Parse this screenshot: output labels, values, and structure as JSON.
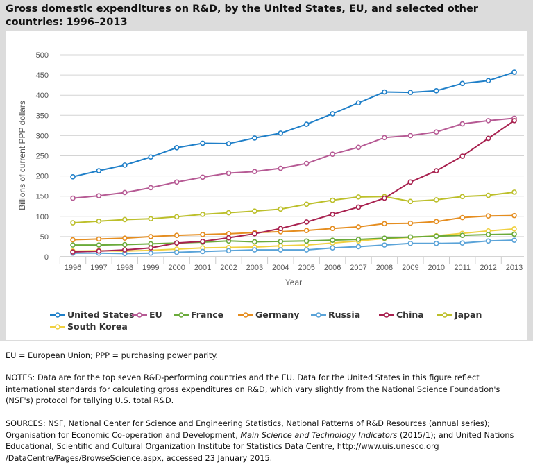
{
  "title": "Gross domestic expenditures on R&D, by the United States, EU, and selected other countries: 1996–2013",
  "chart_data": {
    "type": "line",
    "xlabel": "Year",
    "ylabel": "Billions of current PPP dollars",
    "ylim": [
      0,
      500
    ],
    "yticks": [
      0,
      50,
      100,
      150,
      200,
      250,
      300,
      350,
      400,
      450,
      500
    ],
    "grid": true,
    "legend": "bottom",
    "x": [
      1996,
      1997,
      1998,
      1999,
      2000,
      2001,
      2002,
      2003,
      2004,
      2005,
      2006,
      2007,
      2008,
      2009,
      2010,
      2011,
      2012,
      2013
    ],
    "series": [
      {
        "name": "United States",
        "color": "#1f7fc8",
        "values": [
          198,
          213,
          227,
          247,
          270,
          281,
          280,
          294,
          306,
          328,
          354,
          381,
          408,
          407,
          411,
          429,
          436,
          457
        ]
      },
      {
        "name": "EU",
        "color": "#b65a94",
        "values": [
          145,
          151,
          159,
          171,
          185,
          197,
          207,
          211,
          219,
          231,
          254,
          271,
          295,
          300,
          309,
          329,
          337,
          343
        ]
      },
      {
        "name": "France",
        "color": "#6aaa3a",
        "values": [
          29,
          29,
          30,
          32,
          34,
          36,
          39,
          37,
          38,
          39,
          41,
          43,
          46,
          49,
          51,
          53,
          55,
          56
        ]
      },
      {
        "name": "Germany",
        "color": "#e58d1f",
        "values": [
          42,
          44,
          46,
          50,
          53,
          55,
          57,
          60,
          62,
          65,
          70,
          74,
          82,
          83,
          87,
          97,
          101,
          102
        ]
      },
      {
        "name": "Russia",
        "color": "#5aa3d8",
        "values": [
          9,
          9,
          8,
          9,
          11,
          13,
          15,
          17,
          17,
          17,
          22,
          25,
          29,
          33,
          33,
          34,
          39,
          41
        ]
      },
      {
        "name": "China",
        "color": "#a8214f",
        "values": [
          12,
          14,
          17,
          22,
          34,
          38,
          47,
          57,
          70,
          86,
          105,
          123,
          145,
          185,
          213,
          249,
          293,
          337
        ]
      },
      {
        "name": "Japan",
        "color": "#bcbf2a",
        "values": [
          84,
          88,
          92,
          94,
          99,
          105,
          109,
          113,
          118,
          130,
          140,
          148,
          149,
          137,
          141,
          149,
          152,
          160
        ]
      },
      {
        "name": "South Korea",
        "color": "#f0d040",
        "values": [
          14,
          15,
          14,
          16,
          19,
          22,
          23,
          24,
          27,
          29,
          34,
          39,
          45,
          48,
          52,
          58,
          64,
          69
        ]
      }
    ]
  },
  "notes": {
    "abbrev": "EU = European Union; PPP = purchasing power parity.",
    "notes": "NOTES: Data are for the top seven R&D-performing countries and the EU. Data for the United States in this figure reflect international standards for calculating gross expenditures on R&D, which vary slightly from the National Science Foundation's (NSF's) protocol for tallying U.S. total R&D.",
    "sources_a": "SOURCES: NSF, National Center for Science and Engineering Statistics, National Patterns of R&D Resources (annual series); Organisation for Economic Co-operation and Development, ",
    "sources_italic": "Main Science and Technology Indicators",
    "sources_b": " (2015/1); and United Nations Educational, Scientific and Cultural Organization Institute for Statistics Data Centre, http://www.uis.unesco.org /DataCentre/Pages/BrowseScience.aspx, accessed 23 January 2015."
  }
}
